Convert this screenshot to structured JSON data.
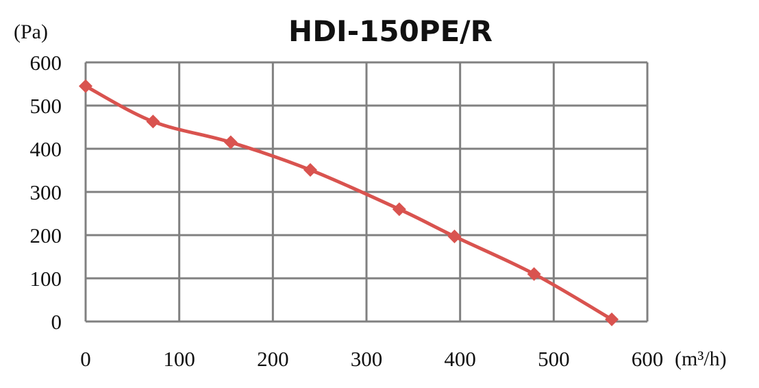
{
  "chart_data": {
    "type": "line",
    "title": "HDI-150PE/R",
    "xlabel": "(m³/h)",
    "ylabel": "(Pa)",
    "xlim": [
      0,
      600
    ],
    "ylim": [
      0,
      600
    ],
    "x_ticks": [
      0,
      100,
      200,
      300,
      400,
      500,
      600
    ],
    "y_ticks": [
      0,
      100,
      200,
      300,
      400,
      500,
      600
    ],
    "x_tick_labels": [
      "0",
      "100",
      "200",
      "300",
      "400",
      "500",
      "600"
    ],
    "y_tick_labels": [
      "0",
      "100",
      "200",
      "300",
      "400",
      "500",
      "600"
    ],
    "grid": true,
    "legend": "none",
    "series": [
      {
        "color": "#d9534f",
        "marker": "diamond",
        "x": [
          0,
          72,
          155,
          240,
          335,
          394,
          479,
          562
        ],
        "y": [
          545,
          463,
          415,
          351,
          260,
          197,
          110,
          5
        ]
      }
    ]
  }
}
